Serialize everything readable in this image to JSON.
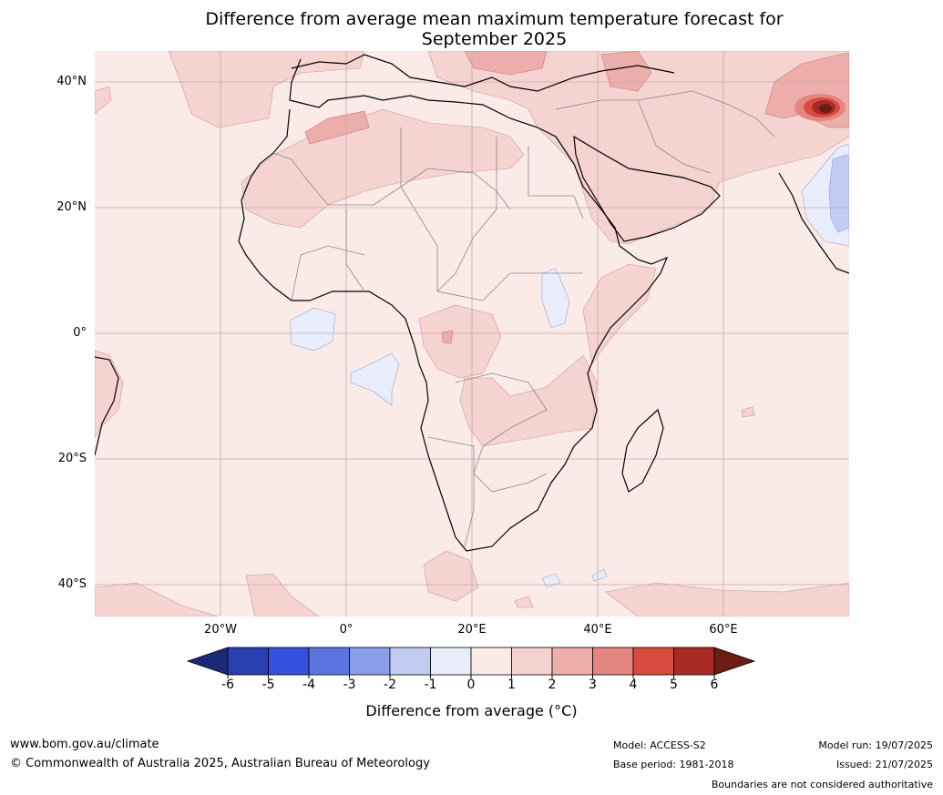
{
  "title": {
    "line1": "Difference from average mean maximum temperature forecast for",
    "line2": "September 2025"
  },
  "axes": {
    "lat_ticks": [
      "40°N",
      "20°N",
      "0°",
      "20°S",
      "40°S"
    ],
    "lon_ticks": [
      "20°W",
      "0°",
      "20°E",
      "40°E",
      "60°E"
    ]
  },
  "legend": {
    "title": "Difference from average (°C)",
    "tick_labels": [
      "-6",
      "-5",
      "-4",
      "-3",
      "-2",
      "-1",
      "0",
      "1",
      "2",
      "3",
      "4",
      "5",
      "6"
    ],
    "colors": [
      "#1b2a78",
      "#2a3fb0",
      "#3551de",
      "#5a75e0",
      "#8a9de8",
      "#c2ccf3",
      "#e9edfb",
      "#fbebe8",
      "#f5d3d0",
      "#ebaeaa",
      "#e4857f",
      "#d84b40",
      "#a92a24",
      "#6a1c15"
    ]
  },
  "footer": {
    "website": "www.bom.gov.au/climate",
    "copyright": "© Commonwealth of Australia 2025, Australian Bureau of Meteorology",
    "model": "Model: ACCESS-S2",
    "base_period": "Base period: 1981-2018",
    "model_run": "Model run: 19/07/2025",
    "issued": "Issued: 21/07/2025",
    "disclaimer": "Boundaries are not considered authoritative"
  }
}
